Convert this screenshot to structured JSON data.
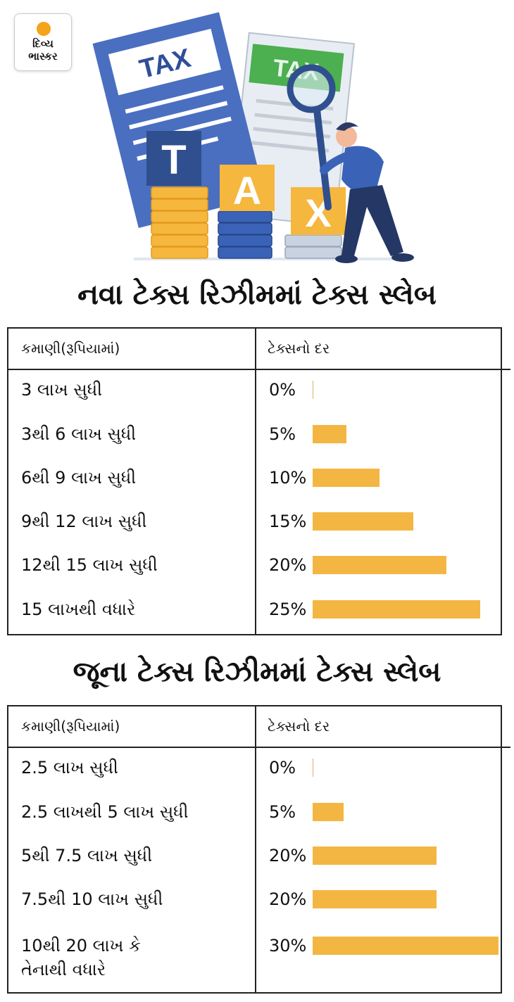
{
  "logo": {
    "line1": "દિવ્ય",
    "line2": "ભાસ્કર"
  },
  "illustration": {
    "tax_label": "TAX",
    "letters": [
      "T",
      "A",
      "X"
    ],
    "icon": "tax-magnifier-illustration"
  },
  "colors": {
    "bar": "#f4b642",
    "doc_blue": "#4a6fc1",
    "doc_green": "#4caf50",
    "coin": "#f5b73d",
    "stack_blue": "#3a63b8"
  },
  "chart_data": [
    {
      "type": "bar",
      "title": "નવા ટેક્સ રિઝીમમાં ટેક્સ સ્લેબ",
      "column_headers": [
        "કમાણી(રૂપિયામાં)",
        "ટેક્સનો દર"
      ],
      "categories": [
        "3 લાખ સુધી",
        "3થી 6 લાખ સુધી",
        "6થી 9 લાખ સુધી",
        "9થી 12 લાખ સુધી",
        "12થી 15 લાખ સુધી",
        "15 લાખથી વધારે"
      ],
      "values": [
        0,
        5,
        10,
        15,
        20,
        25
      ],
      "value_labels": [
        "0%",
        "5%",
        "10%",
        "15%",
        "20%",
        "25%"
      ],
      "xlim": [
        0,
        30
      ]
    },
    {
      "type": "bar",
      "title": "જૂના ટેક્સ રિઝીમમાં ટેક્સ સ્લેબ",
      "column_headers": [
        "કમાણી(રૂપિયામાં)",
        "ટેક્સનો દર"
      ],
      "categories": [
        "2.5 લાખ સુધી",
        "2.5 લાખથી 5 લાખ સુધી",
        "5થી 7.5 લાખ સુધી",
        "7.5થી 10 લાખ સુધી",
        "10થી 20 લાખ કે\nતેનાથી વધારે"
      ],
      "values": [
        0,
        5,
        20,
        20,
        30
      ],
      "value_labels": [
        "0%",
        "5%",
        "20%",
        "20%",
        "30%"
      ],
      "xlim": [
        0,
        30
      ]
    }
  ]
}
